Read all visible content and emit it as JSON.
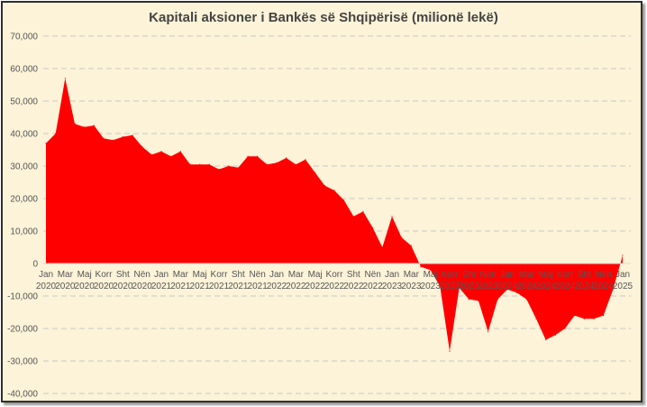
{
  "chart_data": {
    "type": "area",
    "title": "Kapitali aksioner i Bankës së Shqipërisë (milionë lekë)",
    "xlabel": "",
    "ylabel": "",
    "ylim": [
      -40000,
      70000
    ],
    "yticks": [
      70000,
      60000,
      50000,
      40000,
      30000,
      20000,
      10000,
      0,
      -10000,
      -20000,
      -30000,
      -40000
    ],
    "ytick_labels": [
      "70,000",
      "60,000",
      "50,000",
      "40,000",
      "30,000",
      "20,000",
      "10,000",
      "0",
      "-10,000",
      "-20,000",
      "-30,000",
      "-40,000"
    ],
    "grid": "horizontal dashed",
    "legend": "none",
    "fill_color": "#ff0000",
    "background_color": "#fcf3d8",
    "x_tick_labels": [
      {
        "month": "Jan",
        "year": "2020"
      },
      {
        "month": "Mar",
        "year": "2020"
      },
      {
        "month": "Maj",
        "year": "2020"
      },
      {
        "month": "Korr",
        "year": "2020"
      },
      {
        "month": "Sht",
        "year": "2020"
      },
      {
        "month": "Nën",
        "year": "2020"
      },
      {
        "month": "Jan",
        "year": "2021"
      },
      {
        "month": "Mar",
        "year": "2021"
      },
      {
        "month": "Maj",
        "year": "2021"
      },
      {
        "month": "Korr",
        "year": "2021"
      },
      {
        "month": "Sht",
        "year": "2021"
      },
      {
        "month": "Nën",
        "year": "2021"
      },
      {
        "month": "Jan",
        "year": "2022"
      },
      {
        "month": "Mar",
        "year": "2022"
      },
      {
        "month": "Maj",
        "year": "2022"
      },
      {
        "month": "Korr",
        "year": "2022"
      },
      {
        "month": "Sht",
        "year": "2022"
      },
      {
        "month": "Nën",
        "year": "2022"
      },
      {
        "month": "Jan",
        "year": "2023"
      },
      {
        "month": "Mar",
        "year": "2023"
      },
      {
        "month": "Maj",
        "year": "2023"
      },
      {
        "month": "Korr",
        "year": "2023"
      },
      {
        "month": "Sht",
        "year": "2023"
      },
      {
        "month": "Nën",
        "year": "2023"
      },
      {
        "month": "Jan",
        "year": "2024"
      },
      {
        "month": "Mar",
        "year": "2024"
      },
      {
        "month": "Maj",
        "year": "2024"
      },
      {
        "month": "Korr",
        "year": "2024"
      },
      {
        "month": "Sht",
        "year": "2024"
      },
      {
        "month": "Nën",
        "year": "2024"
      },
      {
        "month": "Jan",
        "year": "2025"
      }
    ],
    "x": [
      "2020-01",
      "2020-02",
      "2020-03",
      "2020-04",
      "2020-05",
      "2020-06",
      "2020-07",
      "2020-08",
      "2020-09",
      "2020-10",
      "2020-11",
      "2020-12",
      "2021-01",
      "2021-02",
      "2021-03",
      "2021-04",
      "2021-05",
      "2021-06",
      "2021-07",
      "2021-08",
      "2021-09",
      "2021-10",
      "2021-11",
      "2021-12",
      "2022-01",
      "2022-02",
      "2022-03",
      "2022-04",
      "2022-05",
      "2022-06",
      "2022-07",
      "2022-08",
      "2022-09",
      "2022-10",
      "2022-11",
      "2022-12",
      "2023-01",
      "2023-02",
      "2023-03",
      "2023-04",
      "2023-05",
      "2023-06",
      "2023-07",
      "2023-08",
      "2023-09",
      "2023-10",
      "2023-11",
      "2023-12",
      "2024-01",
      "2024-02",
      "2024-03",
      "2024-04",
      "2024-05",
      "2024-06",
      "2024-07",
      "2024-08",
      "2024-09",
      "2024-10",
      "2024-11",
      "2024-12",
      "2025-01"
    ],
    "values": [
      37000,
      40000,
      57000,
      43000,
      42000,
      42500,
      38500,
      38000,
      39000,
      39500,
      36000,
      33500,
      34500,
      33000,
      34500,
      30500,
      30500,
      30500,
      29000,
      30000,
      29500,
      33000,
      33000,
      30500,
      31000,
      32500,
      30500,
      32000,
      28000,
      24000,
      22500,
      19500,
      14500,
      16000,
      11000,
      5000,
      14500,
      8000,
      5500,
      -1000,
      -2000,
      -7000,
      -27000,
      -7500,
      -11000,
      -11500,
      -21000,
      -11000,
      -8000,
      -9000,
      -11000,
      -17000,
      -23500,
      -22000,
      -20000,
      -16000,
      -17000,
      -17000,
      -16000,
      -8000,
      2500
    ]
  }
}
